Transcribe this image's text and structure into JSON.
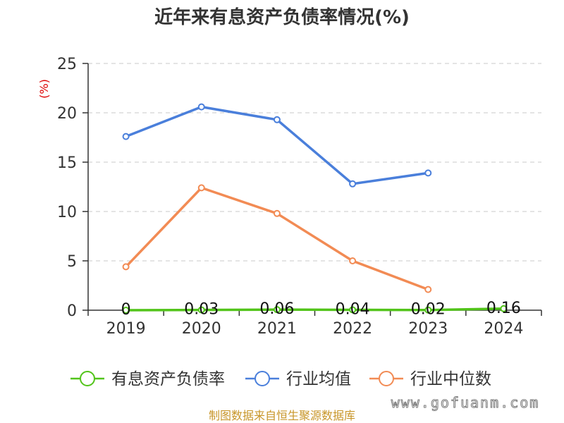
{
  "chart_data": {
    "type": "line",
    "title": "近年来有息资产负债率情况(%)",
    "ylabel": "(%)",
    "xlabel": "",
    "categories": [
      "2019",
      "2020",
      "2021",
      "2022",
      "2023",
      "2024"
    ],
    "ylim": [
      0,
      25
    ],
    "yticks": [
      0,
      5,
      10,
      15,
      20,
      25
    ],
    "grid": true,
    "legend_position": "bottom",
    "series": [
      {
        "name": "有息资产负债率",
        "color": "#52c41a",
        "values": [
          0,
          0.03,
          0.06,
          0.04,
          0.02,
          0.16
        ],
        "data_labels": [
          "0",
          "0.03",
          "0.06",
          "0.04",
          "0.02",
          "0.16"
        ]
      },
      {
        "name": "行业均值",
        "color": "#4a7fdb",
        "values": [
          17.6,
          20.6,
          19.3,
          12.8,
          13.9,
          null
        ]
      },
      {
        "name": "行业中位数",
        "color": "#f28b54",
        "values": [
          4.4,
          12.4,
          9.8,
          5.0,
          2.1,
          null
        ]
      }
    ]
  },
  "source": "制图数据来自恒生聚源数据库",
  "watermark": "www.gofuanm.com"
}
